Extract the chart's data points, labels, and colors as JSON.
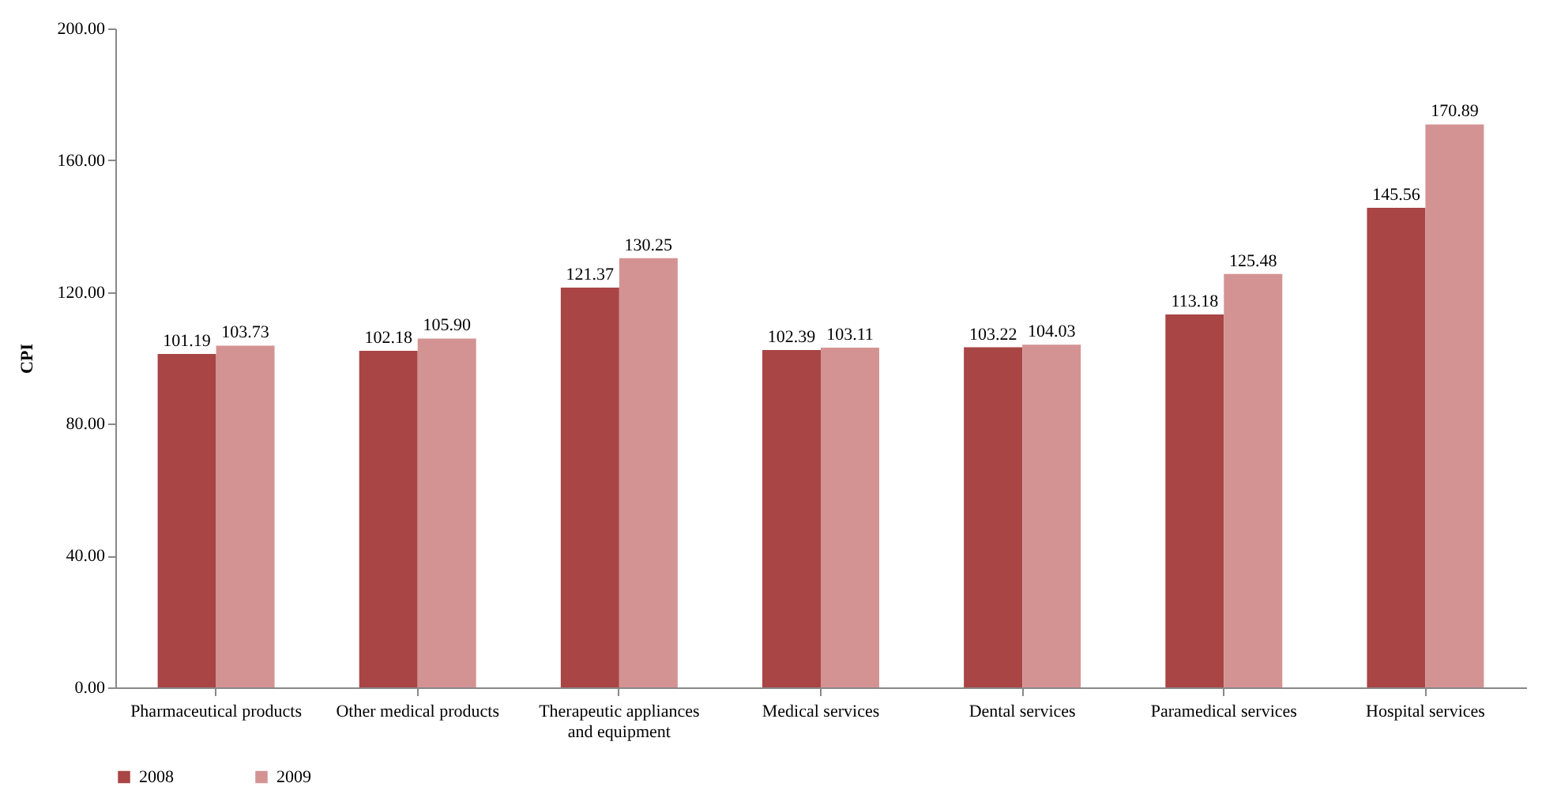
{
  "chart_data": {
    "type": "bar",
    "ylabel": "CPI",
    "categories": [
      "Pharmaceutical products",
      "Other medical products",
      "Therapeutic appliances and equipment",
      "Medical services",
      "Dental services",
      "Paramedical services",
      "Hospital services"
    ],
    "series": [
      {
        "name": "2008",
        "color": "#a94545",
        "values": [
          101.19,
          102.18,
          121.37,
          102.39,
          103.22,
          113.18,
          145.56
        ],
        "value_labels": [
          "101.19",
          "102.18",
          "121.37",
          "102.39",
          "103.22",
          "113.18",
          "145.56"
        ]
      },
      {
        "name": "2009",
        "color": "#d49393",
        "values": [
          103.73,
          105.9,
          130.25,
          103.11,
          104.03,
          125.48,
          170.89
        ],
        "value_labels": [
          "103.73",
          "105.90",
          "130.25",
          "103.11",
          "104.03",
          "125.48",
          "170.89"
        ]
      }
    ],
    "ylim": [
      0,
      200
    ],
    "yticks": [
      {
        "value": 0,
        "label": "0.00"
      },
      {
        "value": 40,
        "label": "40.00"
      },
      {
        "value": 80,
        "label": "80.00"
      },
      {
        "value": 120,
        "label": "120.00"
      },
      {
        "value": 160,
        "label": "160.00"
      },
      {
        "value": 200,
        "label": "200.00"
      }
    ],
    "grid": false,
    "legend": "bottom"
  }
}
